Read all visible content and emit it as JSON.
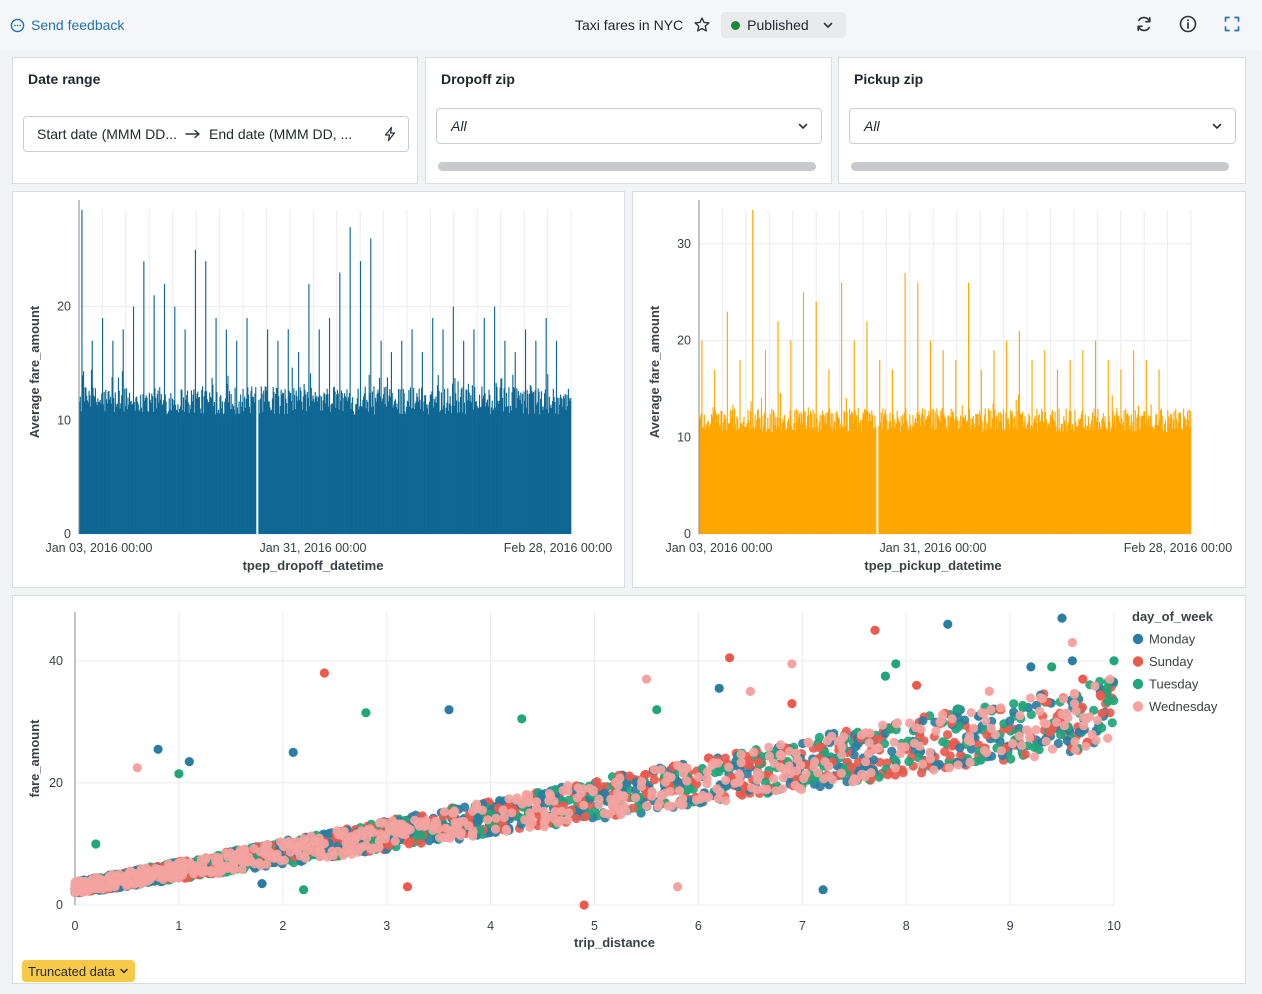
{
  "header": {
    "feedback_label": "Send feedback",
    "title": "Taxi fares in NYC",
    "status_label": "Published",
    "status_color": "#1b8a3a",
    "icons": [
      "refresh-icon",
      "info-icon",
      "fullscreen-icon"
    ]
  },
  "filters": {
    "date_range": {
      "label": "Date range",
      "start_placeholder": "Start date (MMM DD...",
      "end_placeholder": "End date (MMM DD, ..."
    },
    "dropoff_zip": {
      "label": "Dropoff zip",
      "value": "All"
    },
    "pickup_zip": {
      "label": "Pickup zip",
      "value": "All"
    }
  },
  "charts": {
    "truncated_label": "Truncated data"
  },
  "chart_data": [
    {
      "type": "bar",
      "color": "#0e6792",
      "xlabel": "tpep_dropoff_datetime",
      "ylabel": "Average fare_amount",
      "x_ticks": [
        "Jan 03, 2016 00:00",
        "Jan 31, 2016 00:00",
        "Feb 28, 2016 00:00"
      ],
      "y_ticks": [
        0,
        10,
        20
      ],
      "ylim": [
        0,
        28.5
      ],
      "x_range": [
        "2016-01-03",
        "2016-03-01"
      ],
      "gap_near": "2016-01-24",
      "baseline_range": [
        10.5,
        13
      ],
      "grid": true,
      "spikes": [
        28.5,
        17,
        19,
        17,
        18,
        20,
        24,
        21,
        22,
        20,
        18,
        25,
        24,
        19,
        18,
        17,
        19,
        18,
        17,
        18,
        16,
        22,
        18,
        19,
        23,
        27,
        24,
        26,
        17,
        16,
        17,
        18,
        16,
        19,
        18,
        20,
        17,
        18,
        19,
        20,
        17,
        16,
        18,
        17,
        19,
        17
      ]
    },
    {
      "type": "bar",
      "color": "#ffa600",
      "xlabel": "tpep_pickup_datetime",
      "ylabel": "Average fare_amount",
      "x_ticks": [
        "Jan 03, 2016 00:00",
        "Jan 31, 2016 00:00",
        "Feb 28, 2016 00:00"
      ],
      "y_ticks": [
        0,
        10,
        20,
        30
      ],
      "ylim": [
        0,
        33.5
      ],
      "x_range": [
        "2016-01-03",
        "2016-03-01"
      ],
      "gap_near": "2016-01-24",
      "baseline_range": [
        10.5,
        13
      ],
      "grid": true,
      "spikes": [
        20,
        17,
        23,
        18,
        33.5,
        19,
        22,
        20,
        25,
        24,
        17,
        26,
        20,
        22,
        18,
        17,
        27,
        26,
        20,
        19,
        18,
        26,
        17,
        19,
        20,
        21,
        18,
        19,
        17,
        18,
        19,
        20,
        18,
        17,
        19,
        18,
        17
      ]
    },
    {
      "type": "scatter",
      "xlabel": "trip_distance",
      "ylabel": "fare_amount",
      "x_ticks": [
        0,
        1,
        2,
        3,
        4,
        5,
        6,
        7,
        8,
        9,
        10
      ],
      "y_ticks": [
        0,
        20,
        40
      ],
      "xlim": [
        0,
        10
      ],
      "ylim": [
        0,
        48
      ],
      "legend_title": "day_of_week",
      "legend_position": "top-right",
      "grid": true,
      "series": [
        {
          "name": "Monday",
          "color": "#2b7ea1"
        },
        {
          "name": "Sunday",
          "color": "#ec5a4e"
        },
        {
          "name": "Tuesday",
          "color": "#21a57a"
        },
        {
          "name": "Wednesday",
          "color": "#f4a3a0"
        }
      ],
      "trend": {
        "intercept": 2.5,
        "slope": 2.75
      },
      "outliers": [
        [
          0.8,
          25.5,
          0
        ],
        [
          1.1,
          23.5,
          0
        ],
        [
          2.1,
          25,
          0
        ],
        [
          3.6,
          32,
          0
        ],
        [
          6.2,
          35.5,
          0
        ],
        [
          8.4,
          46,
          0
        ],
        [
          9.5,
          47,
          0
        ],
        [
          9.2,
          39,
          0
        ],
        [
          9.6,
          40,
          0
        ],
        [
          7.2,
          2.5,
          0
        ],
        [
          1.8,
          3.5,
          0
        ],
        [
          2.4,
          38,
          1
        ],
        [
          7.7,
          45,
          1
        ],
        [
          6.3,
          40.5,
          1
        ],
        [
          3.2,
          3,
          1
        ],
        [
          4.9,
          0,
          1
        ],
        [
          8.1,
          36,
          1
        ],
        [
          9.7,
          37,
          1
        ],
        [
          6.9,
          33,
          1
        ],
        [
          1.0,
          21.5,
          2
        ],
        [
          2.8,
          31.5,
          2
        ],
        [
          4.3,
          30.5,
          2
        ],
        [
          7.8,
          37.5,
          2
        ],
        [
          7.9,
          39.5,
          2
        ],
        [
          10.0,
          40,
          2
        ],
        [
          9.4,
          39,
          2
        ],
        [
          2.2,
          2.5,
          2
        ],
        [
          0.2,
          10,
          2
        ],
        [
          5.6,
          32,
          2
        ],
        [
          0.6,
          22.5,
          3
        ],
        [
          5.5,
          37,
          3
        ],
        [
          6.5,
          35,
          3
        ],
        [
          9.6,
          43,
          3
        ],
        [
          8.8,
          35,
          3
        ],
        [
          5.8,
          3,
          3
        ],
        [
          6.9,
          39.5,
          3
        ]
      ]
    }
  ]
}
